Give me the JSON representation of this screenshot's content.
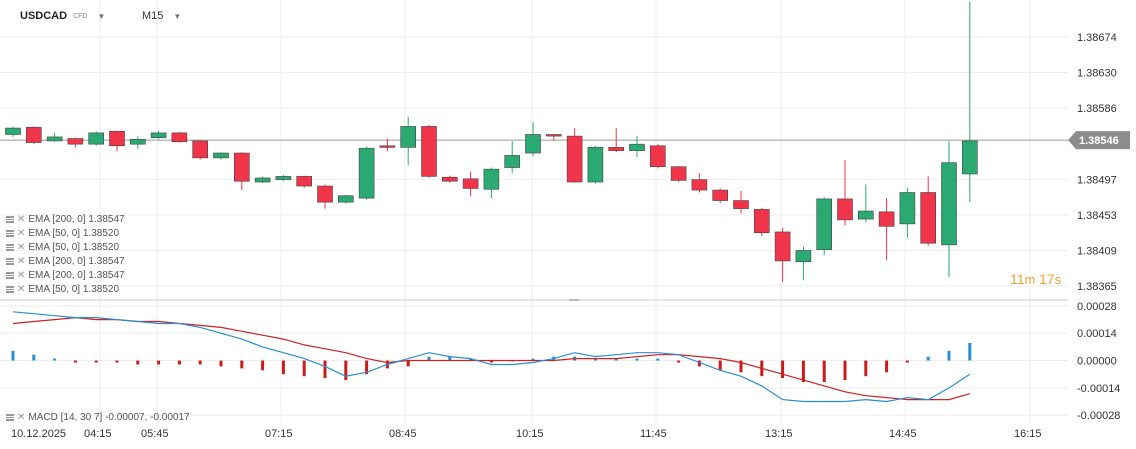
{
  "header": {
    "symbol": "USDCAD",
    "instrument_type": "CFD",
    "timeframe": "M15"
  },
  "indicators": [
    "EMA  [200,  0]  1.38547",
    "EMA  [50,  0]  1.38520",
    "EMA  [50,  0]  1.38520",
    "EMA  [200,  0]  1.38547",
    "EMA  [200,  0]  1.38547",
    "EMA  [50,  0]  1.38520"
  ],
  "macd_label": "MACD  [14,  30  7]  -0.00007,  -0.00017",
  "countdown": {
    "minutes": "11",
    "m": "m",
    "seconds": "17",
    "s": "s"
  },
  "current_price": "1.38546",
  "colors": {
    "up": "#2aaa72",
    "down": "#f0344a",
    "ema": "#cc2222",
    "macd": "#2a8fd0",
    "price_tag": "#8c8c8c"
  },
  "chart_data": {
    "type": "candlestick",
    "main": {
      "ylim": [
        1.3835,
        1.3872
      ],
      "y_ticks": [
        "1.38674",
        "1.38630",
        "1.38586",
        "1.38497",
        "1.38453",
        "1.38409",
        "1.38365"
      ],
      "y_tick_values": [
        1.38674,
        1.3863,
        1.38586,
        1.38497,
        1.38453,
        1.38409,
        1.38365
      ],
      "current_price": 1.38546,
      "candles": [
        [
          1.38553,
          1.38561,
          1.38563,
          1.3855
        ],
        [
          1.38562,
          1.38543,
          1.38563,
          1.38541
        ],
        [
          1.38545,
          1.3855,
          1.38555,
          1.38544
        ],
        [
          1.38548,
          1.38541,
          1.38549,
          1.38537
        ],
        [
          1.38541,
          1.38555,
          1.38557,
          1.38539
        ],
        [
          1.38557,
          1.38539,
          1.38558,
          1.38532
        ],
        [
          1.38541,
          1.38547,
          1.38551,
          1.38535
        ],
        [
          1.38549,
          1.38555,
          1.38558,
          1.38547
        ],
        [
          1.38555,
          1.38544,
          1.38556,
          1.38543
        ],
        [
          1.38545,
          1.38524,
          1.38546,
          1.38522
        ],
        [
          1.38524,
          1.3853,
          1.38531,
          1.38522
        ],
        [
          1.3853,
          1.38495,
          1.38531,
          1.38484
        ],
        [
          1.38494,
          1.38499,
          1.38501,
          1.38493
        ],
        [
          1.38497,
          1.38501,
          1.38503,
          1.38495
        ],
        [
          1.38501,
          1.38489,
          1.38502,
          1.38487
        ],
        [
          1.38489,
          1.38469,
          1.38491,
          1.38461
        ],
        [
          1.38469,
          1.38477,
          1.38478,
          1.38467
        ],
        [
          1.38474,
          1.38536,
          1.38538,
          1.38472
        ],
        [
          1.38539,
          1.38537,
          1.38548,
          1.38532
        ],
        [
          1.38537,
          1.38563,
          1.38575,
          1.38515
        ],
        [
          1.38563,
          1.38501,
          1.38565,
          1.38499
        ],
        [
          1.385,
          1.38495,
          1.38502,
          1.38493
        ],
        [
          1.38498,
          1.38486,
          1.38507,
          1.38476
        ],
        [
          1.38485,
          1.3851,
          1.38512,
          1.38474
        ],
        [
          1.38512,
          1.38527,
          1.38545,
          1.38505
        ],
        [
          1.3853,
          1.38553,
          1.38568,
          1.38526
        ],
        [
          1.38553,
          1.38551,
          1.38552,
          1.38545
        ],
        [
          1.38551,
          1.38494,
          1.38561,
          1.38493
        ],
        [
          1.38494,
          1.38537,
          1.38539,
          1.38492
        ],
        [
          1.38537,
          1.38533,
          1.38561,
          1.38531
        ],
        [
          1.38533,
          1.38541,
          1.38551,
          1.38525
        ],
        [
          1.38539,
          1.38513,
          1.38541,
          1.38511
        ],
        [
          1.38513,
          1.38496,
          1.38514,
          1.38494
        ],
        [
          1.38497,
          1.38484,
          1.38505,
          1.38481
        ],
        [
          1.38484,
          1.38471,
          1.38486,
          1.38468
        ],
        [
          1.38471,
          1.38461,
          1.38483,
          1.38455
        ],
        [
          1.3846,
          1.38431,
          1.38462,
          1.38427
        ],
        [
          1.38432,
          1.38396,
          1.38437,
          1.3837
        ],
        [
          1.38395,
          1.38409,
          1.38414,
          1.38372
        ],
        [
          1.3841,
          1.38473,
          1.38475,
          1.38403
        ],
        [
          1.38473,
          1.38447,
          1.38521,
          1.3844
        ],
        [
          1.38448,
          1.38458,
          1.38491,
          1.38444
        ],
        [
          1.38457,
          1.38439,
          1.38474,
          1.38397
        ],
        [
          1.38442,
          1.38481,
          1.38487,
          1.38425
        ],
        [
          1.38481,
          1.38418,
          1.38501,
          1.38415
        ],
        [
          1.38416,
          1.38518,
          1.38545,
          1.38376
        ],
        [
          1.38504,
          1.38545,
          1.38718,
          1.38469
        ]
      ]
    },
    "macd": {
      "ylim": [
        -0.00032,
        0.0003
      ],
      "y_ticks": [
        "0.00028",
        "0.00014",
        "0.00000",
        "-0.00014",
        "-0.00028"
      ],
      "y_tick_values": [
        0.00028,
        0.00014,
        0.0,
        -0.00014,
        -0.00028
      ],
      "histogram": [
        5e-05,
        3e-05,
        1e-05,
        -1e-05,
        -1e-05,
        -1e-05,
        -2e-05,
        -2e-05,
        -2e-05,
        -2e-05,
        -3e-05,
        -4e-05,
        -5e-05,
        -7e-05,
        -8e-05,
        -9e-05,
        -0.0001,
        -7e-05,
        -4e-05,
        -3e-05,
        2e-05,
        2e-05,
        1e-05,
        -1e-05,
        0.0,
        1e-05,
        2e-05,
        2e-05,
        1e-05,
        1e-05,
        1e-05,
        1e-05,
        -1e-05,
        -3e-05,
        -5e-05,
        -6e-05,
        -8e-05,
        -9e-05,
        -0.00011,
        -0.00011,
        -0.0001,
        -8e-05,
        -6e-05,
        -1e-05,
        2e-05,
        5e-05,
        9e-05
      ],
      "macd_line": [
        0.00025,
        0.00024,
        0.00023,
        0.00022,
        0.00022,
        0.00021,
        0.0002,
        0.00019,
        0.00019,
        0.00017,
        0.00014,
        0.00011,
        7e-05,
        4e-05,
        1e-05,
        -3e-05,
        -8e-05,
        -6e-05,
        -2e-05,
        1e-05,
        4e-05,
        2e-05,
        1e-05,
        -2e-05,
        -2e-05,
        -1e-05,
        1e-05,
        4e-05,
        2e-05,
        3e-05,
        4e-05,
        4e-05,
        3e-05,
        -1e-05,
        -5e-05,
        -8e-05,
        -0.00013,
        -0.0002,
        -0.00021,
        -0.00021,
        -0.00021,
        -0.0002,
        -0.00021,
        -0.00019,
        -0.0002,
        -0.00014,
        -7e-05
      ],
      "signal_line": [
        0.00019,
        0.0002,
        0.00021,
        0.00022,
        0.00021,
        0.00021,
        0.0002,
        0.0002,
        0.00019,
        0.00018,
        0.00017,
        0.00015,
        0.00013,
        0.00011,
        8e-05,
        6e-05,
        4e-05,
        1e-05,
        -1e-05,
        0.0,
        0.0,
        0.0,
        0.0,
        0.0,
        0.0,
        0.0,
        0.0,
        1e-05,
        1e-05,
        1e-05,
        2e-05,
        3e-05,
        3e-05,
        2e-05,
        1e-05,
        -1e-05,
        -4e-05,
        -7e-05,
        -0.0001,
        -0.00013,
        -0.00016,
        -0.00018,
        -0.00019,
        -0.0002,
        -0.0002,
        -0.0002,
        -0.00017
      ]
    },
    "x_ticks": [
      "10.12.2025",
      "04:15",
      "05:45",
      "07:15",
      "08:45",
      "10:15",
      "11:45",
      "13:15",
      "14:45",
      "16:15"
    ]
  }
}
